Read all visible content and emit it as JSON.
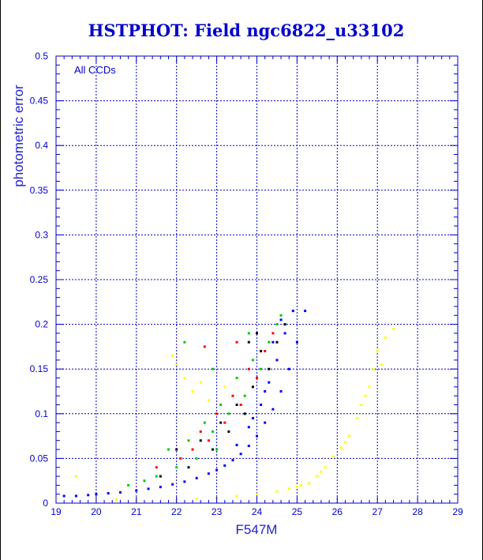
{
  "chart_data": {
    "type": "scatter",
    "title": "HSTPHOT: Field ngc6822_u33102",
    "xlabel": "F547M",
    "ylabel": "photometric error",
    "annotation": "All CCDs",
    "xlim": [
      19,
      29
    ],
    "ylim": [
      0,
      0.5
    ],
    "xticks": [
      "19",
      "20",
      "21",
      "22",
      "23",
      "24",
      "25",
      "26",
      "27",
      "28",
      "29"
    ],
    "yticks": [
      "0",
      "0.05",
      "0.1",
      "0.15",
      "0.2",
      "0.25",
      "0.3",
      "0.35",
      "0.4",
      "0.45",
      "0.5"
    ],
    "grid": true,
    "series": [
      {
        "color": "#ffff00",
        "points": [
          [
            22.0,
            0.003
          ],
          [
            22.5,
            0.005
          ],
          [
            23.0,
            0.006
          ],
          [
            23.5,
            0.008
          ],
          [
            24.0,
            0.01
          ],
          [
            24.5,
            0.013
          ],
          [
            25.0,
            0.018
          ],
          [
            25.3,
            0.022
          ],
          [
            25.5,
            0.03
          ],
          [
            25.7,
            0.04
          ],
          [
            25.9,
            0.052
          ],
          [
            26.1,
            0.062
          ],
          [
            26.3,
            0.075
          ],
          [
            26.5,
            0.095
          ],
          [
            26.7,
            0.12
          ],
          [
            26.9,
            0.15
          ],
          [
            27.0,
            0.17
          ],
          [
            27.2,
            0.185
          ],
          [
            27.4,
            0.195
          ],
          [
            26.2,
            0.068
          ],
          [
            26.6,
            0.11
          ],
          [
            25.6,
            0.035
          ],
          [
            21.9,
            0.165
          ],
          [
            22.2,
            0.14
          ],
          [
            22.4,
            0.125
          ],
          [
            22.6,
            0.135
          ],
          [
            22.0,
            0.155
          ],
          [
            23.2,
            0.13
          ],
          [
            22.8,
            0.115
          ],
          [
            20.5,
            0.004
          ],
          [
            21.0,
            0.003
          ],
          [
            19.5,
            0.03
          ],
          [
            26.8,
            0.13
          ],
          [
            27.1,
            0.155
          ],
          [
            24.8,
            0.016
          ],
          [
            25.1,
            0.02
          ]
        ]
      },
      {
        "color": "#00cc00",
        "points": [
          [
            21.8,
            0.06
          ],
          [
            22.0,
            0.04
          ],
          [
            22.3,
            0.07
          ],
          [
            22.5,
            0.05
          ],
          [
            22.7,
            0.09
          ],
          [
            22.9,
            0.08
          ],
          [
            23.1,
            0.11
          ],
          [
            23.3,
            0.1
          ],
          [
            23.5,
            0.14
          ],
          [
            23.7,
            0.12
          ],
          [
            23.9,
            0.16
          ],
          [
            24.1,
            0.15
          ],
          [
            24.3,
            0.18
          ],
          [
            24.5,
            0.2
          ],
          [
            23.0,
            0.06
          ],
          [
            22.2,
            0.18
          ],
          [
            22.9,
            0.15
          ],
          [
            21.5,
            0.03
          ],
          [
            20.8,
            0.02
          ],
          [
            23.8,
            0.19
          ],
          [
            24.6,
            0.21
          ],
          [
            21.2,
            0.025
          ]
        ]
      },
      {
        "color": "#ff0000",
        "points": [
          [
            22.1,
            0.05
          ],
          [
            22.4,
            0.06
          ],
          [
            22.6,
            0.08
          ],
          [
            22.8,
            0.07
          ],
          [
            23.0,
            0.1
          ],
          [
            23.2,
            0.09
          ],
          [
            23.4,
            0.12
          ],
          [
            23.6,
            0.11
          ],
          [
            23.8,
            0.15
          ],
          [
            24.0,
            0.14
          ],
          [
            24.2,
            0.17
          ],
          [
            24.4,
            0.19
          ],
          [
            22.7,
            0.175
          ],
          [
            23.5,
            0.18
          ],
          [
            21.5,
            0.04
          ]
        ]
      },
      {
        "color": "#000000",
        "points": [
          [
            21.6,
            0.03
          ],
          [
            22.0,
            0.06
          ],
          [
            22.3,
            0.04
          ],
          [
            22.6,
            0.07
          ],
          [
            22.9,
            0.06
          ],
          [
            23.1,
            0.09
          ],
          [
            23.3,
            0.08
          ],
          [
            23.5,
            0.11
          ],
          [
            23.7,
            0.1
          ],
          [
            23.9,
            0.13
          ],
          [
            24.1,
            0.17
          ],
          [
            24.3,
            0.15
          ],
          [
            24.5,
            0.18
          ],
          [
            24.7,
            0.2
          ],
          [
            23.8,
            0.18
          ],
          [
            24.0,
            0.19
          ]
        ]
      },
      {
        "color": "#0000ff",
        "points": [
          [
            19.2,
            0.008
          ],
          [
            19.5,
            0.008
          ],
          [
            19.8,
            0.009
          ],
          [
            20.0,
            0.01
          ],
          [
            20.3,
            0.011
          ],
          [
            20.6,
            0.012
          ],
          [
            21.0,
            0.014
          ],
          [
            21.3,
            0.016
          ],
          [
            21.6,
            0.018
          ],
          [
            21.9,
            0.021
          ],
          [
            22.2,
            0.024
          ],
          [
            22.5,
            0.028
          ],
          [
            22.8,
            0.033
          ],
          [
            23.0,
            0.037
          ],
          [
            23.2,
            0.042
          ],
          [
            23.4,
            0.048
          ],
          [
            23.6,
            0.055
          ],
          [
            23.8,
            0.064
          ],
          [
            24.0,
            0.075
          ],
          [
            24.2,
            0.09
          ],
          [
            24.4,
            0.105
          ],
          [
            24.6,
            0.125
          ],
          [
            24.8,
            0.15
          ],
          [
            25.0,
            0.18
          ],
          [
            25.2,
            0.215
          ],
          [
            23.5,
            0.065
          ],
          [
            23.8,
            0.085
          ],
          [
            24.1,
            0.11
          ],
          [
            24.3,
            0.135
          ],
          [
            24.5,
            0.16
          ],
          [
            24.7,
            0.19
          ],
          [
            24.9,
            0.215
          ],
          [
            24.4,
            0.18
          ],
          [
            24.6,
            0.205
          ],
          [
            23.9,
            0.095
          ],
          [
            24.2,
            0.125
          ]
        ]
      }
    ]
  }
}
